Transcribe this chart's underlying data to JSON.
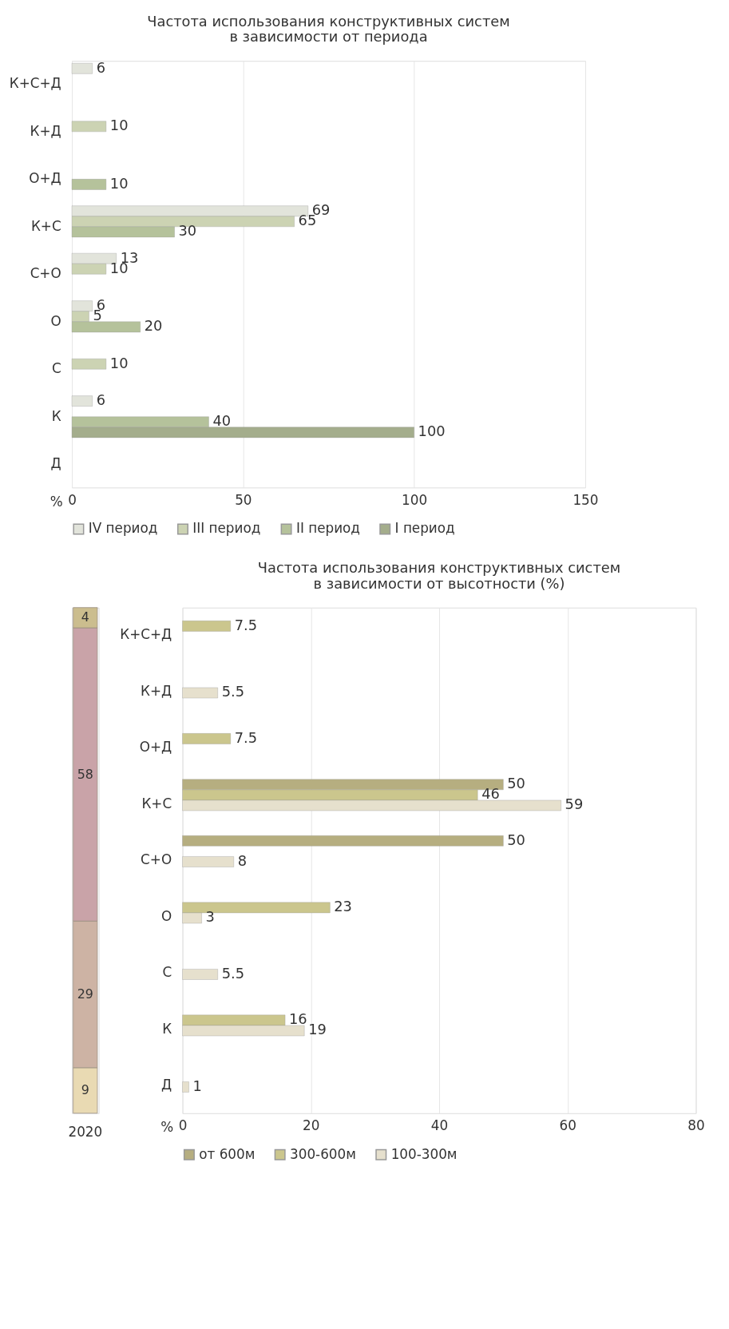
{
  "chart_data": [
    {
      "type": "bar",
      "orientation": "horizontal",
      "title": [
        "Частота использования конструктивных систем",
        "в зависимости от периода"
      ],
      "xlabel": "%",
      "categories": [
        "К+С+Д",
        "К+Д",
        "О+Д",
        "К+С",
        "С+О",
        "О",
        "С",
        "К",
        "Д"
      ],
      "series": [
        {
          "name": "IV период",
          "color": "#e2e4db",
          "values": [
            6,
            null,
            null,
            69,
            13,
            6,
            null,
            6,
            null
          ]
        },
        {
          "name": "III период",
          "color": "#ccd3b3",
          "values": [
            null,
            10,
            null,
            65,
            10,
            5,
            10,
            null,
            null
          ]
        },
        {
          "name": "II период",
          "color": "#b5c29b",
          "values": [
            null,
            null,
            10,
            30,
            null,
            20,
            null,
            40,
            null
          ]
        },
        {
          "name": "I период",
          "color": "#a4ad8c",
          "values": [
            null,
            null,
            null,
            null,
            null,
            null,
            null,
            100,
            null
          ]
        }
      ],
      "xlim": [
        0,
        150
      ],
      "xticks": [
        0,
        50,
        100,
        150
      ],
      "grid": "x",
      "legend": "bottom",
      "data_labels": true
    },
    {
      "type": "bar",
      "stacked": true,
      "categories": [
        "2020"
      ],
      "series": [
        {
          "color": "#e9dab3",
          "values": [
            9
          ]
        },
        {
          "color": "#cdb3a4",
          "values": [
            29
          ]
        },
        {
          "color": "#c9a3a8",
          "values": [
            58
          ]
        },
        {
          "color": "#cbbd8e",
          "values": [
            4
          ]
        }
      ],
      "tick_labels": "x",
      "data_labels": true
    },
    {
      "type": "bar",
      "orientation": "horizontal",
      "title": [
        "Частота использования конструктивных систем",
        "в зависимости от высотности (%)"
      ],
      "xlabel": "%",
      "categories": [
        "К+С+Д",
        "К+Д",
        "О+Д",
        "К+С",
        "С+О",
        "О",
        "С",
        "К",
        "Д"
      ],
      "series": [
        {
          "name": "от 600м",
          "color": "#b6ae80",
          "values": [
            null,
            null,
            null,
            50,
            50,
            null,
            null,
            null,
            null
          ]
        },
        {
          "name": "300-600м",
          "color": "#cbc68d",
          "values": [
            7.5,
            null,
            7.5,
            46,
            null,
            23,
            null,
            16,
            null
          ]
        },
        {
          "name": "100-300м",
          "color": "#e6e0cd",
          "values": [
            null,
            5.5,
            null,
            59,
            8,
            3,
            5.5,
            19,
            1
          ]
        }
      ],
      "xlim": [
        0,
        80
      ],
      "xticks": [
        0,
        20,
        40,
        60,
        80
      ],
      "grid": "x",
      "legend": "bottom",
      "data_labels": true
    }
  ]
}
